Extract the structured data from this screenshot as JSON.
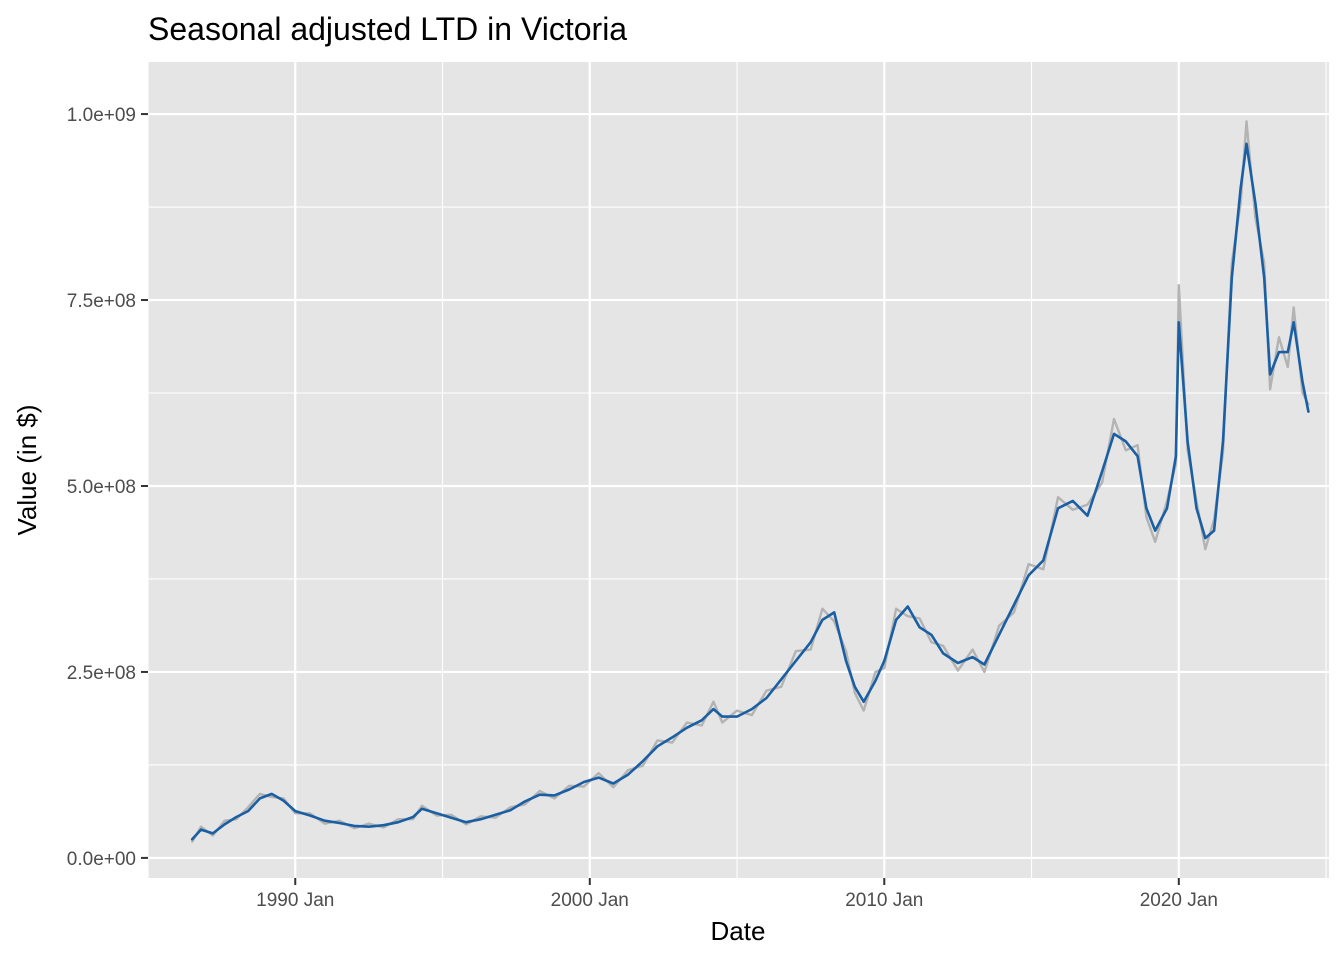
{
  "chart_data": {
    "type": "line",
    "title": "Seasonal adjusted LTD in Victoria",
    "xlabel": "Date",
    "ylabel": "Value (in $)",
    "x_tick_labels": [
      "1990 Jan",
      "2000 Jan",
      "2010 Jan",
      "2020 Jan"
    ],
    "x_tick_values": [
      1990,
      2000,
      2010,
      2020
    ],
    "y_tick_labels": [
      "0.0e+00",
      "2.5e+08",
      "5.0e+08",
      "7.5e+08",
      "1.0e+09"
    ],
    "y_tick_values": [
      0,
      250000000,
      500000000,
      750000000,
      1000000000
    ],
    "xlim": [
      1985.0,
      2025.1
    ],
    "ylim": [
      -27000000,
      1070000000
    ],
    "grid": true,
    "legend": "none",
    "colors": {
      "panel": "#e5e5e5",
      "grid": "#ffffff",
      "seasonal_adjusted": "#1a5fa3",
      "original": "#b3b3b3"
    },
    "series": [
      {
        "role": "seasonal_adjusted",
        "color": "#1a5fa3",
        "points": [
          [
            1986.5,
            25000000
          ],
          [
            1986.8,
            38000000
          ],
          [
            1987.2,
            33000000
          ],
          [
            1987.6,
            45000000
          ],
          [
            1988.0,
            55000000
          ],
          [
            1988.4,
            63000000
          ],
          [
            1988.8,
            80000000
          ],
          [
            1989.2,
            86000000
          ],
          [
            1989.6,
            77000000
          ],
          [
            1990.0,
            63000000
          ],
          [
            1990.5,
            57000000
          ],
          [
            1991.0,
            50000000
          ],
          [
            1991.5,
            47000000
          ],
          [
            1992.0,
            43000000
          ],
          [
            1992.5,
            42000000
          ],
          [
            1993.0,
            44000000
          ],
          [
            1993.5,
            48000000
          ],
          [
            1994.0,
            55000000
          ],
          [
            1994.3,
            66000000
          ],
          [
            1994.8,
            60000000
          ],
          [
            1995.3,
            54000000
          ],
          [
            1995.8,
            48000000
          ],
          [
            1996.3,
            52000000
          ],
          [
            1996.8,
            58000000
          ],
          [
            1997.3,
            64000000
          ],
          [
            1997.8,
            76000000
          ],
          [
            1998.3,
            85000000
          ],
          [
            1998.8,
            84000000
          ],
          [
            1999.3,
            92000000
          ],
          [
            1999.8,
            102000000
          ],
          [
            2000.3,
            108000000
          ],
          [
            2000.8,
            100000000
          ],
          [
            2001.3,
            112000000
          ],
          [
            2001.8,
            130000000
          ],
          [
            2002.3,
            150000000
          ],
          [
            2002.8,
            162000000
          ],
          [
            2003.3,
            175000000
          ],
          [
            2003.8,
            185000000
          ],
          [
            2004.2,
            200000000
          ],
          [
            2004.5,
            190000000
          ],
          [
            2005.0,
            190000000
          ],
          [
            2005.5,
            200000000
          ],
          [
            2006.0,
            215000000
          ],
          [
            2006.5,
            240000000
          ],
          [
            2007.0,
            265000000
          ],
          [
            2007.5,
            290000000
          ],
          [
            2007.9,
            320000000
          ],
          [
            2008.3,
            330000000
          ],
          [
            2008.7,
            265000000
          ],
          [
            2009.0,
            230000000
          ],
          [
            2009.3,
            210000000
          ],
          [
            2009.7,
            238000000
          ],
          [
            2010.0,
            265000000
          ],
          [
            2010.4,
            320000000
          ],
          [
            2010.8,
            338000000
          ],
          [
            2011.2,
            310000000
          ],
          [
            2011.6,
            300000000
          ],
          [
            2012.0,
            275000000
          ],
          [
            2012.5,
            262000000
          ],
          [
            2013.0,
            270000000
          ],
          [
            2013.4,
            260000000
          ],
          [
            2013.9,
            300000000
          ],
          [
            2014.4,
            340000000
          ],
          [
            2014.9,
            380000000
          ],
          [
            2015.4,
            400000000
          ],
          [
            2015.9,
            470000000
          ],
          [
            2016.4,
            480000000
          ],
          [
            2016.9,
            460000000
          ],
          [
            2017.4,
            520000000
          ],
          [
            2017.8,
            570000000
          ],
          [
            2018.2,
            560000000
          ],
          [
            2018.6,
            540000000
          ],
          [
            2018.9,
            470000000
          ],
          [
            2019.2,
            440000000
          ],
          [
            2019.6,
            470000000
          ],
          [
            2019.9,
            540000000
          ],
          [
            2020.0,
            720000000
          ],
          [
            2020.3,
            560000000
          ],
          [
            2020.6,
            470000000
          ],
          [
            2020.9,
            430000000
          ],
          [
            2021.2,
            440000000
          ],
          [
            2021.5,
            560000000
          ],
          [
            2021.8,
            780000000
          ],
          [
            2022.1,
            900000000
          ],
          [
            2022.3,
            960000000
          ],
          [
            2022.6,
            880000000
          ],
          [
            2022.9,
            780000000
          ],
          [
            2023.1,
            650000000
          ],
          [
            2023.4,
            680000000
          ],
          [
            2023.7,
            680000000
          ],
          [
            2023.9,
            720000000
          ],
          [
            2024.2,
            640000000
          ],
          [
            2024.4,
            600000000
          ]
        ]
      },
      {
        "role": "original",
        "color": "#b3b3b3",
        "points": [
          [
            1986.5,
            22000000
          ],
          [
            1986.8,
            42000000
          ],
          [
            1987.2,
            30000000
          ],
          [
            1987.6,
            50000000
          ],
          [
            1988.0,
            52000000
          ],
          [
            1988.4,
            68000000
          ],
          [
            1988.8,
            86000000
          ],
          [
            1989.2,
            82000000
          ],
          [
            1989.6,
            80000000
          ],
          [
            1990.0,
            60000000
          ],
          [
            1990.5,
            60000000
          ],
          [
            1991.0,
            46000000
          ],
          [
            1991.5,
            50000000
          ],
          [
            1992.0,
            40000000
          ],
          [
            1992.5,
            46000000
          ],
          [
            1993.0,
            41000000
          ],
          [
            1993.5,
            52000000
          ],
          [
            1994.0,
            52000000
          ],
          [
            1994.3,
            70000000
          ],
          [
            1994.8,
            57000000
          ],
          [
            1995.3,
            58000000
          ],
          [
            1995.8,
            45000000
          ],
          [
            1996.3,
            56000000
          ],
          [
            1996.8,
            54000000
          ],
          [
            1997.3,
            68000000
          ],
          [
            1997.8,
            72000000
          ],
          [
            1998.3,
            90000000
          ],
          [
            1998.8,
            80000000
          ],
          [
            1999.3,
            97000000
          ],
          [
            1999.8,
            96000000
          ],
          [
            2000.3,
            114000000
          ],
          [
            2000.8,
            95000000
          ],
          [
            2001.3,
            118000000
          ],
          [
            2001.8,
            124000000
          ],
          [
            2002.3,
            158000000
          ],
          [
            2002.8,
            155000000
          ],
          [
            2003.3,
            182000000
          ],
          [
            2003.8,
            178000000
          ],
          [
            2004.2,
            210000000
          ],
          [
            2004.5,
            182000000
          ],
          [
            2005.0,
            198000000
          ],
          [
            2005.5,
            192000000
          ],
          [
            2006.0,
            225000000
          ],
          [
            2006.5,
            230000000
          ],
          [
            2007.0,
            278000000
          ],
          [
            2007.5,
            280000000
          ],
          [
            2007.9,
            335000000
          ],
          [
            2008.3,
            318000000
          ],
          [
            2008.7,
            278000000
          ],
          [
            2009.0,
            222000000
          ],
          [
            2009.3,
            198000000
          ],
          [
            2009.7,
            250000000
          ],
          [
            2010.0,
            255000000
          ],
          [
            2010.4,
            335000000
          ],
          [
            2010.8,
            325000000
          ],
          [
            2011.2,
            322000000
          ],
          [
            2011.6,
            290000000
          ],
          [
            2012.0,
            285000000
          ],
          [
            2012.5,
            252000000
          ],
          [
            2013.0,
            280000000
          ],
          [
            2013.4,
            250000000
          ],
          [
            2013.9,
            312000000
          ],
          [
            2014.4,
            330000000
          ],
          [
            2014.9,
            395000000
          ],
          [
            2015.4,
            388000000
          ],
          [
            2015.9,
            485000000
          ],
          [
            2016.4,
            468000000
          ],
          [
            2016.9,
            475000000
          ],
          [
            2017.4,
            505000000
          ],
          [
            2017.8,
            590000000
          ],
          [
            2018.2,
            548000000
          ],
          [
            2018.6,
            555000000
          ],
          [
            2018.9,
            458000000
          ],
          [
            2019.2,
            425000000
          ],
          [
            2019.6,
            480000000
          ],
          [
            2019.9,
            530000000
          ],
          [
            2020.0,
            770000000
          ],
          [
            2020.3,
            548000000
          ],
          [
            2020.6,
            480000000
          ],
          [
            2020.9,
            415000000
          ],
          [
            2021.2,
            455000000
          ],
          [
            2021.5,
            545000000
          ],
          [
            2021.8,
            800000000
          ],
          [
            2022.1,
            880000000
          ],
          [
            2022.3,
            990000000
          ],
          [
            2022.6,
            860000000
          ],
          [
            2022.9,
            800000000
          ],
          [
            2023.1,
            630000000
          ],
          [
            2023.4,
            700000000
          ],
          [
            2023.7,
            660000000
          ],
          [
            2023.9,
            740000000
          ],
          [
            2024.2,
            625000000
          ],
          [
            2024.4,
            610000000
          ]
        ]
      }
    ]
  }
}
